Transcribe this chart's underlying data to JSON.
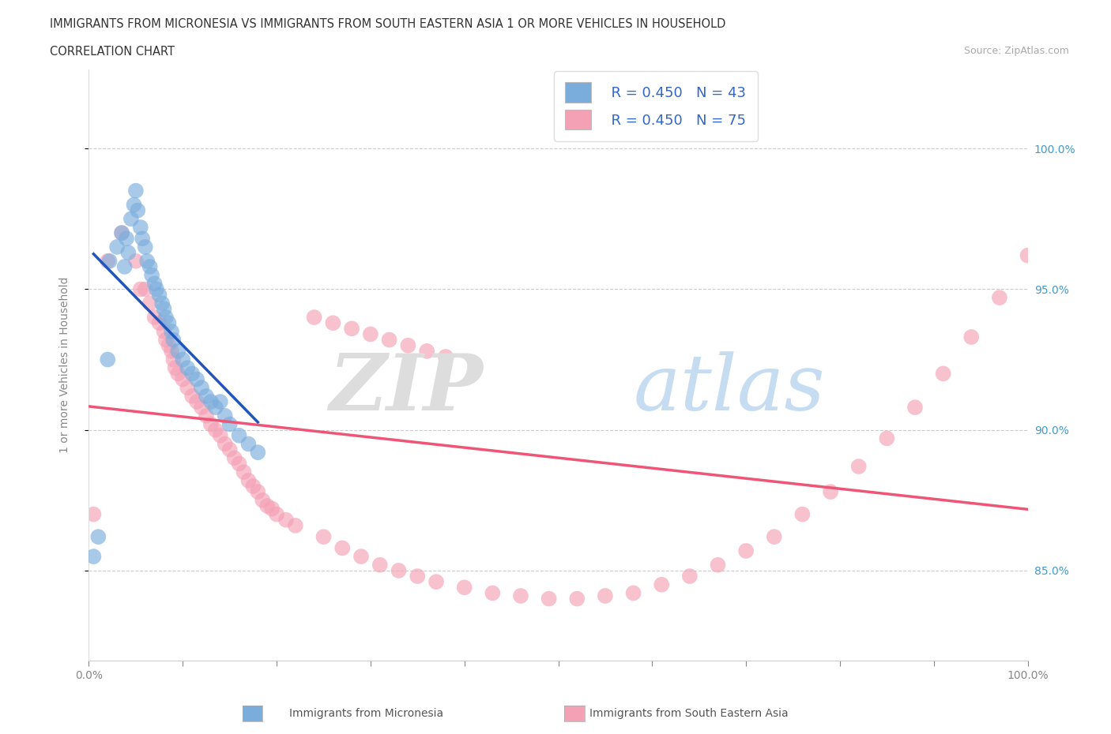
{
  "title": "IMMIGRANTS FROM MICRONESIA VS IMMIGRANTS FROM SOUTH EASTERN ASIA 1 OR MORE VEHICLES IN HOUSEHOLD",
  "subtitle": "CORRELATION CHART",
  "source": "Source: ZipAtlas.com",
  "ylabel": "1 or more Vehicles in Household",
  "ytick_labels": [
    "100.0%",
    "95.0%",
    "90.0%",
    "85.0%"
  ],
  "ytick_values": [
    1.0,
    0.95,
    0.9,
    0.85
  ],
  "xtick_labels": [
    "0.0%",
    "",
    "",
    "",
    "",
    "",
    "",
    "",
    "",
    "100.0%"
  ],
  "xtick_values": [
    0.0,
    0.1,
    0.2,
    0.3,
    0.4,
    0.5,
    0.6,
    0.7,
    0.8,
    1.0
  ],
  "xmin": 0.0,
  "xmax": 1.0,
  "ymin": 0.818,
  "ymax": 1.028,
  "legend_label1": "Immigrants from Micronesia",
  "legend_label2": "Immigrants from South Eastern Asia",
  "r1": 0.45,
  "n1": 43,
  "r2": 0.45,
  "n2": 75,
  "blue_color": "#7AADDC",
  "pink_color": "#F4A0B5",
  "blue_line_color": "#2255BB",
  "pink_line_color": "#EE5577",
  "blue_scatter_x": [
    0.005,
    0.01,
    0.02,
    0.022,
    0.03,
    0.035,
    0.038,
    0.04,
    0.042,
    0.045,
    0.048,
    0.05,
    0.052,
    0.055,
    0.057,
    0.06,
    0.062,
    0.065,
    0.067,
    0.07,
    0.072,
    0.075,
    0.078,
    0.08,
    0.082,
    0.085,
    0.088,
    0.09,
    0.095,
    0.1,
    0.105,
    0.11,
    0.115,
    0.12,
    0.125,
    0.13,
    0.135,
    0.14,
    0.145,
    0.15,
    0.16,
    0.17,
    0.18
  ],
  "blue_scatter_y": [
    0.855,
    0.862,
    0.925,
    0.96,
    0.965,
    0.97,
    0.958,
    0.968,
    0.963,
    0.975,
    0.98,
    0.985,
    0.978,
    0.972,
    0.968,
    0.965,
    0.96,
    0.958,
    0.955,
    0.952,
    0.95,
    0.948,
    0.945,
    0.943,
    0.94,
    0.938,
    0.935,
    0.932,
    0.928,
    0.925,
    0.922,
    0.92,
    0.918,
    0.915,
    0.912,
    0.91,
    0.908,
    0.91,
    0.905,
    0.902,
    0.898,
    0.895,
    0.892
  ],
  "pink_scatter_x": [
    0.005,
    0.02,
    0.035,
    0.05,
    0.055,
    0.06,
    0.065,
    0.07,
    0.075,
    0.08,
    0.082,
    0.085,
    0.088,
    0.09,
    0.092,
    0.095,
    0.1,
    0.105,
    0.11,
    0.115,
    0.12,
    0.125,
    0.13,
    0.135,
    0.14,
    0.145,
    0.15,
    0.155,
    0.16,
    0.165,
    0.17,
    0.175,
    0.18,
    0.185,
    0.19,
    0.195,
    0.2,
    0.21,
    0.22,
    0.25,
    0.27,
    0.29,
    0.31,
    0.33,
    0.35,
    0.37,
    0.4,
    0.43,
    0.46,
    0.49,
    0.52,
    0.55,
    0.58,
    0.61,
    0.64,
    0.67,
    0.7,
    0.73,
    0.76,
    0.79,
    0.82,
    0.85,
    0.88,
    0.91,
    0.94,
    0.97,
    1.0,
    0.24,
    0.26,
    0.28,
    0.3,
    0.32,
    0.34,
    0.36,
    0.38
  ],
  "pink_scatter_y": [
    0.87,
    0.96,
    0.97,
    0.96,
    0.95,
    0.95,
    0.945,
    0.94,
    0.938,
    0.935,
    0.932,
    0.93,
    0.928,
    0.925,
    0.922,
    0.92,
    0.918,
    0.915,
    0.912,
    0.91,
    0.908,
    0.905,
    0.902,
    0.9,
    0.898,
    0.895,
    0.893,
    0.89,
    0.888,
    0.885,
    0.882,
    0.88,
    0.878,
    0.875,
    0.873,
    0.872,
    0.87,
    0.868,
    0.866,
    0.862,
    0.858,
    0.855,
    0.852,
    0.85,
    0.848,
    0.846,
    0.844,
    0.842,
    0.841,
    0.84,
    0.84,
    0.841,
    0.842,
    0.845,
    0.848,
    0.852,
    0.857,
    0.862,
    0.87,
    0.878,
    0.887,
    0.897,
    0.908,
    0.92,
    0.933,
    0.947,
    0.962,
    0.94,
    0.938,
    0.936,
    0.934,
    0.932,
    0.93,
    0.928,
    0.926
  ]
}
